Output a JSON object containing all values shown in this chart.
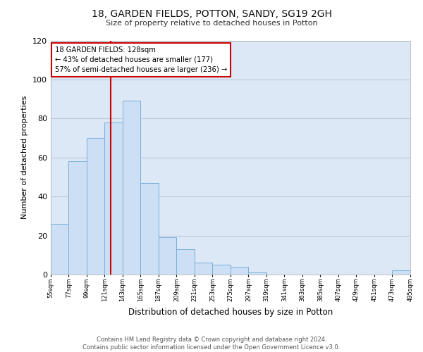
{
  "title": "18, GARDEN FIELDS, POTTON, SANDY, SG19 2GH",
  "subtitle": "Size of property relative to detached houses in Potton",
  "xlabel": "Distribution of detached houses by size in Potton",
  "ylabel": "Number of detached properties",
  "bar_color": "#ccdff5",
  "bar_edge_color": "#7ab0d8",
  "grid_color": "#b8c8dc",
  "background_color": "#dce8f5",
  "fig_background_color": "#ffffff",
  "bin_starts": [
    55,
    77,
    99,
    121,
    143,
    165,
    187,
    209,
    231,
    253,
    275,
    297,
    319,
    341,
    363,
    385,
    407,
    429,
    451,
    473
  ],
  "bin_width": 22,
  "bar_heights": [
    26,
    58,
    70,
    78,
    89,
    47,
    19,
    13,
    6,
    5,
    4,
    1,
    0,
    0,
    0,
    0,
    0,
    0,
    0,
    2
  ],
  "tick_labels": [
    "55sqm",
    "77sqm",
    "99sqm",
    "121sqm",
    "143sqm",
    "165sqm",
    "187sqm",
    "209sqm",
    "231sqm",
    "253sqm",
    "275sqm",
    "297sqm",
    "319sqm",
    "341sqm",
    "363sqm",
    "385sqm",
    "407sqm",
    "429sqm",
    "451sqm",
    "473sqm",
    "495sqm"
  ],
  "ylim": [
    0,
    120
  ],
  "yticks": [
    0,
    20,
    40,
    60,
    80,
    100,
    120
  ],
  "property_line_x": 128,
  "annotation_title": "18 GARDEN FIELDS: 128sqm",
  "annotation_line1": "← 43% of detached houses are smaller (177)",
  "annotation_line2": "57% of semi-detached houses are larger (236) →",
  "red_line_color": "#cc0000",
  "annotation_box_color": "#ffffff",
  "annotation_box_edge": "#cc0000",
  "footer_line1": "Contains HM Land Registry data © Crown copyright and database right 2024.",
  "footer_line2": "Contains public sector information licensed under the Open Government Licence v3.0."
}
